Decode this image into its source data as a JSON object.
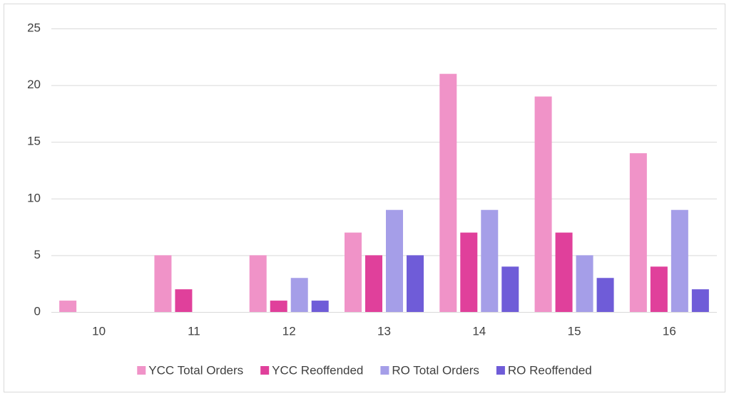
{
  "chart_data": {
    "type": "bar",
    "categories": [
      "10",
      "11",
      "12",
      "13",
      "14",
      "15",
      "16"
    ],
    "series": [
      {
        "name": "YCC Total Orders",
        "color": "#f093c8",
        "values": [
          1,
          5,
          5,
          7,
          21,
          19,
          14
        ]
      },
      {
        "name": "YCC Reoffended",
        "color": "#e0409b",
        "values": [
          0,
          2,
          1,
          5,
          7,
          7,
          4
        ]
      },
      {
        "name": "RO Total Orders",
        "color": "#a59ee8",
        "values": [
          0,
          0,
          3,
          9,
          9,
          5,
          9
        ]
      },
      {
        "name": "RO Reoffended",
        "color": "#6f5cd8",
        "values": [
          0,
          0,
          1,
          5,
          4,
          3,
          2
        ]
      }
    ],
    "ylim": [
      0,
      25
    ],
    "yticks": [
      0,
      5,
      10,
      15,
      20,
      25
    ],
    "grid": true,
    "legend": "bottom"
  }
}
